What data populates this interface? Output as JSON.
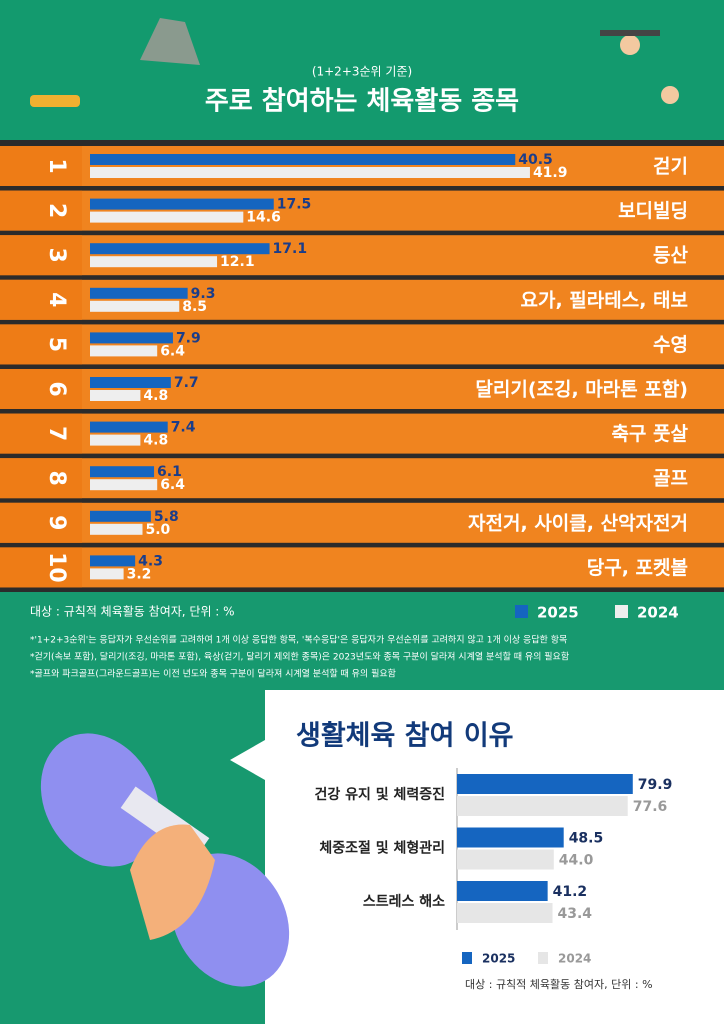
{
  "chart_data": [
    {
      "type": "hbar",
      "subtitle": "(1+2+3순위 기준)",
      "title": "주로 참여하는 체육활동 종목",
      "ranks": [
        "1",
        "2",
        "3",
        "4",
        "5",
        "6",
        "7",
        "8",
        "9",
        "10"
      ],
      "categories": [
        "걷기",
        "보디빌딩",
        "등산",
        "요가, 필라테스, 태보",
        "수영",
        "달리기(조깅, 마라톤 포함)",
        "축구 풋살",
        "골프",
        "자전거, 사이클, 산악자전거",
        "당구, 포켓볼"
      ],
      "series": [
        {
          "name": "2025",
          "color": "#1565c0",
          "values": [
            40.5,
            17.5,
            17.1,
            9.3,
            7.9,
            7.7,
            7.4,
            6.1,
            5.8,
            4.3
          ]
        },
        {
          "name": "2024",
          "color": "#eeeeee",
          "values": [
            41.9,
            14.6,
            12.1,
            8.5,
            6.4,
            4.8,
            4.8,
            6.4,
            5.0,
            3.2
          ],
          "value_labels": [
            "41.9",
            "14.6",
            "12.1",
            "8.5",
            "6.4",
            "4.8",
            "4.8",
            "6.4",
            "5.0",
            "3.2"
          ]
        }
      ],
      "xlim": [
        0,
        50
      ],
      "note": "대상 : 규칙적 체육활동 참여자, 단위 : %",
      "footnotes": [
        "*'1+2+3순위'는 응답자가 우선순위를 고려하여 1개 이상 응답한 항목, '복수응답'은 응답자가 우선순위를 고려하지 않고 1개 이상 응답한 항목",
        "*걷기(속보 포함), 달리기(조깅, 마라톤 포함), 육상(걷기, 달리기 제외한 종목)은 2023년도와 종목 구분이 달라져 시계열 분석할 때 유의 필요함",
        "*골프와 파크골프(그라운드골프)는 이전 년도와 종목 구분이 달라져 시계열 분석할 때 유의 필요함"
      ]
    },
    {
      "type": "hbar",
      "title": "생활체육 참여 이유",
      "categories": [
        "건강 유지 및 체력증진",
        "체중조절 및 체형관리",
        "스트레스 해소"
      ],
      "series": [
        {
          "name": "2025",
          "color": "#1565c0",
          "values": [
            79.9,
            48.5,
            41.2
          ]
        },
        {
          "name": "2024",
          "color": "#e6e6e6",
          "values": [
            77.6,
            44.0,
            43.4
          ],
          "value_labels": [
            "77.6",
            "44.0",
            "43.4"
          ]
        }
      ],
      "xlim": [
        0,
        100
      ],
      "note": "대상 : 규칙적 체육활동 참여자, 단위 : %"
    }
  ]
}
